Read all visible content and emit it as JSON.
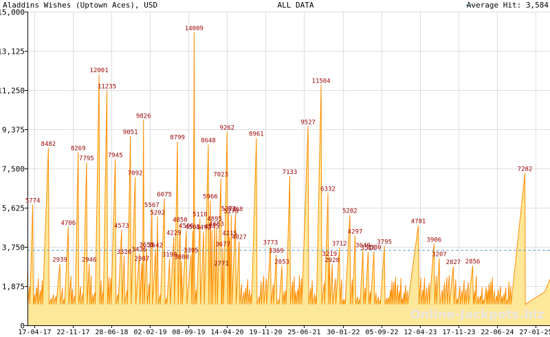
{
  "header": {
    "left_title": "Aladdins Wishes (Uptown Aces), USD",
    "center_title": "ALL DATA",
    "legend_label": "Average Hit: 3,584"
  },
  "watermark": "Online-Jackpots.biz",
  "colors": {
    "area_fill": "#FDE89A",
    "line": "#FF8C00",
    "peak_label": "#990000",
    "average_line": "#5599CC",
    "grid": "#DDDDDD",
    "axis": "#000000"
  },
  "chart_data": {
    "type": "area",
    "title": "Aladdins Wishes (Uptown Aces), USD",
    "subtitle": "ALL DATA",
    "y_ticks": [
      0,
      1875,
      3750,
      5625,
      7500,
      9375,
      11250,
      13125,
      15000
    ],
    "y_tick_labels": [
      "0",
      "1,875",
      "3,750",
      "5,625",
      "7,500",
      "9,375",
      "11,250",
      "13,125",
      "15,000"
    ],
    "ylim": [
      0,
      15000
    ],
    "x_tick_labels": [
      "17-04-17",
      "22-11-17",
      "28-06-18",
      "02-02-19",
      "08-09-19",
      "14-04-20",
      "19-11-20",
      "25-06-21",
      "30-01-22",
      "05-09-22",
      "12-04-23",
      "17-11-23",
      "22-06-24",
      "27-01-25"
    ],
    "average_hit": 3584,
    "grid": true,
    "legend_position": "top-right",
    "peaks": [
      {
        "t": 0.01,
        "v": 5774
      },
      {
        "t": 0.04,
        "v": 8482
      },
      {
        "t": 0.062,
        "v": 2939
      },
      {
        "t": 0.078,
        "v": 4706
      },
      {
        "t": 0.097,
        "v": 8269
      },
      {
        "t": 0.113,
        "v": 7795
      },
      {
        "t": 0.118,
        "v": 2946
      },
      {
        "t": 0.137,
        "v": 12001
      },
      {
        "t": 0.152,
        "v": 11235
      },
      {
        "t": 0.168,
        "v": 7945
      },
      {
        "t": 0.18,
        "v": 4573
      },
      {
        "t": 0.185,
        "v": 3326
      },
      {
        "t": 0.197,
        "v": 9051
      },
      {
        "t": 0.206,
        "v": 7092
      },
      {
        "t": 0.214,
        "v": 3436
      },
      {
        "t": 0.219,
        "v": 2987
      },
      {
        "t": 0.222,
        "v": 9826
      },
      {
        "t": 0.228,
        "v": 3655
      },
      {
        "t": 0.238,
        "v": 5567
      },
      {
        "t": 0.245,
        "v": 3642
      },
      {
        "t": 0.249,
        "v": 5202
      },
      {
        "t": 0.262,
        "v": 6075
      },
      {
        "t": 0.272,
        "v": 3190
      },
      {
        "t": 0.28,
        "v": 4229
      },
      {
        "t": 0.287,
        "v": 8799
      },
      {
        "t": 0.292,
        "v": 4850
      },
      {
        "t": 0.295,
        "v": 3080
      },
      {
        "t": 0.304,
        "v": 4566
      },
      {
        "t": 0.313,
        "v": 3395
      },
      {
        "t": 0.316,
        "v": 4505
      },
      {
        "t": 0.319,
        "v": 14009
      },
      {
        "t": 0.33,
        "v": 5110
      },
      {
        "t": 0.337,
        "v": 4493
      },
      {
        "t": 0.346,
        "v": 8648
      },
      {
        "t": 0.35,
        "v": 5966
      },
      {
        "t": 0.353,
        "v": 4545
      },
      {
        "t": 0.358,
        "v": 4895
      },
      {
        "t": 0.362,
        "v": 4653
      },
      {
        "t": 0.37,
        "v": 7023
      },
      {
        "t": 0.371,
        "v": 2771
      },
      {
        "t": 0.374,
        "v": 3677
      },
      {
        "t": 0.382,
        "v": 9262
      },
      {
        "t": 0.385,
        "v": 5372
      },
      {
        "t": 0.387,
        "v": 4215
      },
      {
        "t": 0.39,
        "v": 5270
      },
      {
        "t": 0.398,
        "v": 5368
      },
      {
        "t": 0.405,
        "v": 4027
      },
      {
        "t": 0.438,
        "v": 8961
      },
      {
        "t": 0.465,
        "v": 3773
      },
      {
        "t": 0.476,
        "v": 3369
      },
      {
        "t": 0.487,
        "v": 2853
      },
      {
        "t": 0.502,
        "v": 7133
      },
      {
        "t": 0.537,
        "v": 9527
      },
      {
        "t": 0.562,
        "v": 11504
      },
      {
        "t": 0.575,
        "v": 6332
      },
      {
        "t": 0.578,
        "v": 3219
      },
      {
        "t": 0.583,
        "v": 2928
      },
      {
        "t": 0.597,
        "v": 3712
      },
      {
        "t": 0.617,
        "v": 5282
      },
      {
        "t": 0.627,
        "v": 4297
      },
      {
        "t": 0.642,
        "v": 3640
      },
      {
        "t": 0.652,
        "v": 3518
      },
      {
        "t": 0.663,
        "v": 3530
      },
      {
        "t": 0.683,
        "v": 3795
      },
      {
        "t": 0.748,
        "v": 4781
      },
      {
        "t": 0.778,
        "v": 3906
      },
      {
        "t": 0.788,
        "v": 3207
      },
      {
        "t": 0.815,
        "v": 2827
      },
      {
        "t": 0.852,
        "v": 2856
      },
      {
        "t": 0.952,
        "v": 7282
      }
    ]
  }
}
